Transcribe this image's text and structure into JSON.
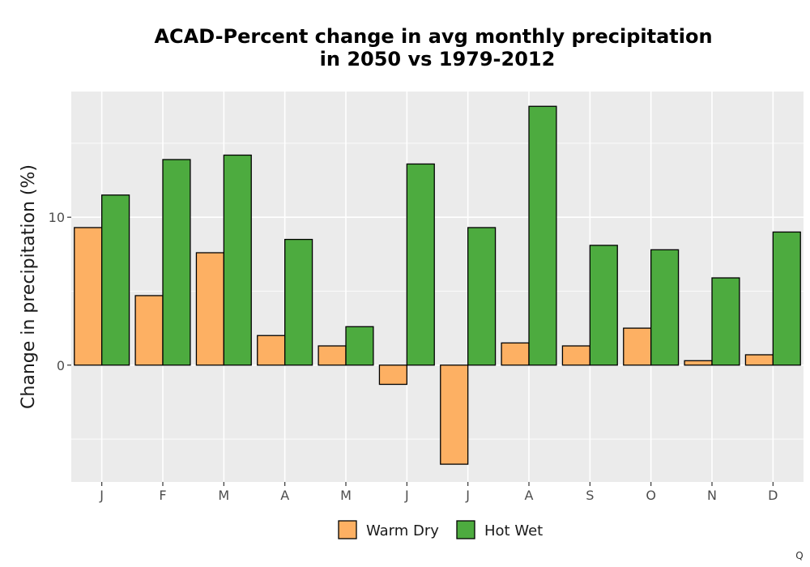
{
  "chart_data": {
    "type": "bar",
    "title_lines": [
      "ACAD-Percent change in avg monthly precipitation",
      "in 2050 vs 1979-2012"
    ],
    "xlabel": "",
    "ylabel": "Change in precipitation (%)",
    "categories": [
      "J",
      "F",
      "M",
      "A",
      "M",
      "J",
      "J",
      "A",
      "S",
      "O",
      "N",
      "D"
    ],
    "series": [
      {
        "name": "Warm Dry",
        "color": "#FDB063",
        "values": [
          9.3,
          4.7,
          7.6,
          2.0,
          1.3,
          -1.3,
          -6.7,
          1.5,
          1.3,
          2.5,
          0.3,
          0.7
        ]
      },
      {
        "name": "Hot Wet",
        "color": "#4DAB3F",
        "values": [
          11.5,
          13.9,
          14.2,
          8.5,
          2.6,
          13.6,
          9.3,
          17.5,
          8.1,
          7.8,
          5.9,
          9.0
        ]
      }
    ],
    "ylim": [
      -7.9,
      18.5
    ],
    "yticks": [
      0,
      10
    ],
    "grid": true,
    "legend_position": "bottom",
    "panel_background": "#EBEBEB"
  },
  "corner_mark": "Q"
}
